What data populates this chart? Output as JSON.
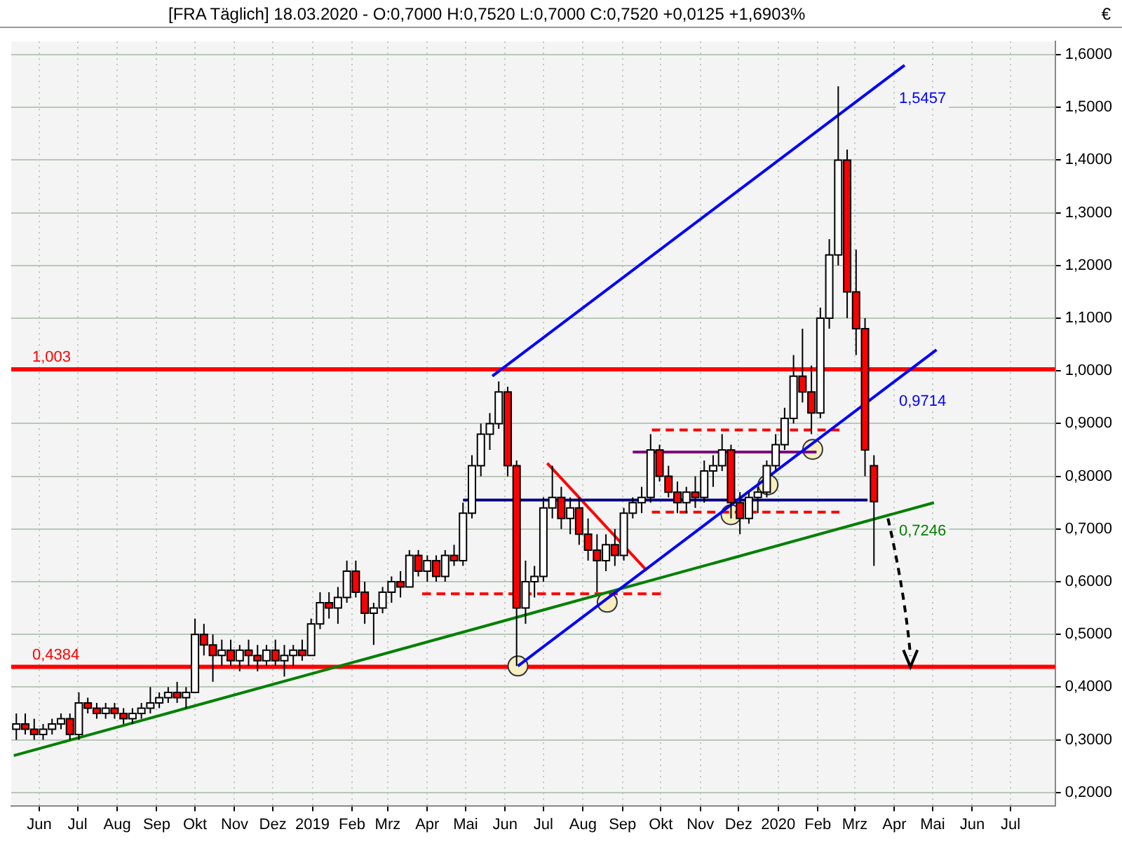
{
  "chart_data": {
    "type": "candlestick",
    "title": "[FRA Täglich] 18.03.2020 - O:0,7000 H:0,7520 L:0,7000 C:0,7520 +0,0125 +1,6903%",
    "ylabel": "€",
    "x": [
      "2018-05-14",
      "2018-05-21",
      "2018-05-28",
      "2018-06-04",
      "2018-06-11",
      "2018-06-18",
      "2018-06-25",
      "2018-07-02",
      "2018-07-09",
      "2018-07-16",
      "2018-07-23",
      "2018-07-30",
      "2018-08-06",
      "2018-08-13",
      "2018-08-20",
      "2018-08-27",
      "2018-09-03",
      "2018-09-10",
      "2018-09-17",
      "2018-09-24",
      "2018-10-01",
      "2018-10-08",
      "2018-10-15",
      "2018-10-22",
      "2018-10-29",
      "2018-11-05",
      "2018-11-12",
      "2018-11-19",
      "2018-11-26",
      "2018-12-03",
      "2018-12-10",
      "2018-12-17",
      "2018-12-24",
      "2018-12-31",
      "2019-01-07",
      "2019-01-14",
      "2019-01-21",
      "2019-01-28",
      "2019-02-04",
      "2019-02-11",
      "2019-02-18",
      "2019-02-25",
      "2019-03-04",
      "2019-03-11",
      "2019-03-18",
      "2019-03-25",
      "2019-04-01",
      "2019-04-08",
      "2019-04-15",
      "2019-04-22",
      "2019-04-29",
      "2019-05-06",
      "2019-05-13",
      "2019-05-20",
      "2019-05-27",
      "2019-06-03",
      "2019-06-10",
      "2019-06-17",
      "2019-06-24",
      "2019-07-01",
      "2019-07-08",
      "2019-07-15",
      "2019-07-22",
      "2019-07-29",
      "2019-08-05",
      "2019-08-12",
      "2019-08-19",
      "2019-08-26",
      "2019-09-02",
      "2019-09-09",
      "2019-09-16",
      "2019-09-23",
      "2019-09-30",
      "2019-10-07",
      "2019-10-14",
      "2019-10-21",
      "2019-10-28",
      "2019-11-04",
      "2019-11-11",
      "2019-11-18",
      "2019-11-25",
      "2019-12-02",
      "2019-12-09",
      "2019-12-16",
      "2019-12-23",
      "2019-12-30",
      "2020-01-06",
      "2020-01-13",
      "2020-01-20",
      "2020-01-27",
      "2020-02-03",
      "2020-02-10",
      "2020-02-17",
      "2020-02-24",
      "2020-03-02",
      "2020-03-09",
      "2020-03-16"
    ],
    "ohlc": [
      [
        0.32,
        0.35,
        0.3,
        0.33
      ],
      [
        0.33,
        0.35,
        0.31,
        0.32
      ],
      [
        0.32,
        0.34,
        0.3,
        0.31
      ],
      [
        0.31,
        0.33,
        0.3,
        0.32
      ],
      [
        0.32,
        0.34,
        0.31,
        0.33
      ],
      [
        0.33,
        0.35,
        0.32,
        0.34
      ],
      [
        0.34,
        0.35,
        0.3,
        0.31
      ],
      [
        0.31,
        0.39,
        0.3,
        0.37
      ],
      [
        0.37,
        0.38,
        0.35,
        0.36
      ],
      [
        0.36,
        0.37,
        0.34,
        0.35
      ],
      [
        0.35,
        0.37,
        0.34,
        0.36
      ],
      [
        0.36,
        0.37,
        0.34,
        0.35
      ],
      [
        0.35,
        0.36,
        0.33,
        0.34
      ],
      [
        0.34,
        0.36,
        0.33,
        0.35
      ],
      [
        0.35,
        0.37,
        0.34,
        0.36
      ],
      [
        0.36,
        0.4,
        0.35,
        0.37
      ],
      [
        0.37,
        0.39,
        0.36,
        0.38
      ],
      [
        0.38,
        0.4,
        0.37,
        0.39
      ],
      [
        0.39,
        0.41,
        0.37,
        0.38
      ],
      [
        0.38,
        0.4,
        0.36,
        0.39
      ],
      [
        0.39,
        0.53,
        0.39,
        0.5
      ],
      [
        0.5,
        0.52,
        0.46,
        0.48
      ],
      [
        0.48,
        0.5,
        0.41,
        0.46
      ],
      [
        0.46,
        0.49,
        0.44,
        0.47
      ],
      [
        0.47,
        0.49,
        0.44,
        0.45
      ],
      [
        0.45,
        0.48,
        0.43,
        0.47
      ],
      [
        0.47,
        0.49,
        0.44,
        0.46
      ],
      [
        0.46,
        0.48,
        0.43,
        0.45
      ],
      [
        0.45,
        0.48,
        0.44,
        0.47
      ],
      [
        0.47,
        0.49,
        0.44,
        0.45
      ],
      [
        0.45,
        0.48,
        0.42,
        0.46
      ],
      [
        0.46,
        0.48,
        0.44,
        0.47
      ],
      [
        0.47,
        0.49,
        0.45,
        0.46
      ],
      [
        0.46,
        0.53,
        0.46,
        0.52
      ],
      [
        0.52,
        0.58,
        0.51,
        0.56
      ],
      [
        0.56,
        0.58,
        0.53,
        0.55
      ],
      [
        0.55,
        0.59,
        0.52,
        0.57
      ],
      [
        0.57,
        0.64,
        0.56,
        0.62
      ],
      [
        0.62,
        0.64,
        0.57,
        0.58
      ],
      [
        0.58,
        0.6,
        0.52,
        0.54
      ],
      [
        0.54,
        0.56,
        0.48,
        0.55
      ],
      [
        0.55,
        0.59,
        0.54,
        0.58
      ],
      [
        0.58,
        0.61,
        0.56,
        0.6
      ],
      [
        0.6,
        0.62,
        0.57,
        0.59
      ],
      [
        0.59,
        0.66,
        0.59,
        0.65
      ],
      [
        0.65,
        0.66,
        0.61,
        0.62
      ],
      [
        0.62,
        0.65,
        0.6,
        0.64
      ],
      [
        0.64,
        0.65,
        0.6,
        0.61
      ],
      [
        0.61,
        0.66,
        0.6,
        0.65
      ],
      [
        0.65,
        0.67,
        0.63,
        0.64
      ],
      [
        0.64,
        0.75,
        0.63,
        0.73
      ],
      [
        0.73,
        0.84,
        0.72,
        0.82
      ],
      [
        0.82,
        0.9,
        0.8,
        0.88
      ],
      [
        0.88,
        0.92,
        0.85,
        0.9
      ],
      [
        0.9,
        0.98,
        0.89,
        0.96
      ],
      [
        0.96,
        0.97,
        0.8,
        0.82
      ],
      [
        0.82,
        0.83,
        0.44,
        0.55
      ],
      [
        0.55,
        0.64,
        0.52,
        0.6
      ],
      [
        0.6,
        0.63,
        0.57,
        0.61
      ],
      [
        0.61,
        0.76,
        0.6,
        0.74
      ],
      [
        0.74,
        0.82,
        0.72,
        0.76
      ],
      [
        0.76,
        0.78,
        0.7,
        0.72
      ],
      [
        0.72,
        0.76,
        0.69,
        0.74
      ],
      [
        0.74,
        0.76,
        0.67,
        0.69
      ],
      [
        0.69,
        0.72,
        0.64,
        0.66
      ],
      [
        0.66,
        0.69,
        0.58,
        0.64
      ],
      [
        0.64,
        0.69,
        0.62,
        0.67
      ],
      [
        0.67,
        0.7,
        0.63,
        0.65
      ],
      [
        0.65,
        0.74,
        0.64,
        0.73
      ],
      [
        0.73,
        0.76,
        0.72,
        0.75
      ],
      [
        0.75,
        0.78,
        0.73,
        0.76
      ],
      [
        0.76,
        0.88,
        0.75,
        0.85
      ],
      [
        0.85,
        0.86,
        0.79,
        0.8
      ],
      [
        0.8,
        0.82,
        0.76,
        0.77
      ],
      [
        0.77,
        0.79,
        0.73,
        0.75
      ],
      [
        0.75,
        0.78,
        0.73,
        0.77
      ],
      [
        0.77,
        0.8,
        0.74,
        0.76
      ],
      [
        0.76,
        0.83,
        0.75,
        0.81
      ],
      [
        0.81,
        0.84,
        0.78,
        0.82
      ],
      [
        0.82,
        0.88,
        0.81,
        0.85
      ],
      [
        0.85,
        0.86,
        0.72,
        0.75
      ],
      [
        0.75,
        0.77,
        0.69,
        0.72
      ],
      [
        0.72,
        0.77,
        0.71,
        0.76
      ],
      [
        0.76,
        0.78,
        0.73,
        0.77
      ],
      [
        0.77,
        0.83,
        0.76,
        0.82
      ],
      [
        0.82,
        0.88,
        0.81,
        0.86
      ],
      [
        0.86,
        0.93,
        0.85,
        0.91
      ],
      [
        0.91,
        1.03,
        0.9,
        0.99
      ],
      [
        0.99,
        1.08,
        0.94,
        0.96
      ],
      [
        0.96,
        1.01,
        0.88,
        0.92
      ],
      [
        0.92,
        1.12,
        0.91,
        1.1
      ],
      [
        1.1,
        1.25,
        1.08,
        1.22
      ],
      [
        1.22,
        1.54,
        1.2,
        1.4
      ],
      [
        1.4,
        1.42,
        1.1,
        1.15
      ],
      [
        1.15,
        1.23,
        1.03,
        1.08
      ],
      [
        1.08,
        1.1,
        0.8,
        0.85
      ],
      [
        0.82,
        0.84,
        0.63,
        0.752
      ]
    ],
    "series": [
      {
        "type": "line",
        "color": "#0000ff",
        "x": [
          "2019-05-22",
          "2020-04-09"
        ],
        "values": [
          0.99,
          1.58
        ]
      },
      {
        "type": "line",
        "color": "#0000ff",
        "x": [
          "2019-06-11",
          "2020-05-04"
        ],
        "values": [
          0.44,
          1.04
        ]
      },
      {
        "type": "line",
        "color": "#008000",
        "x": [
          "2018-05-12",
          "2020-05-02"
        ],
        "values": [
          0.27,
          0.75
        ]
      },
      {
        "type": "line",
        "color": "#000080",
        "x": [
          "2019-04-29",
          "2020-03-11"
        ],
        "values": [
          0.755,
          0.755
        ]
      },
      {
        "type": "line",
        "color": "#800080",
        "x": [
          "2019-09-09",
          "2020-01-31"
        ],
        "values": [
          0.846,
          0.846
        ]
      },
      {
        "type": "line",
        "color": "#ff0000",
        "line_style": "dashed",
        "x": [
          "2019-09-24",
          "2020-02-18"
        ],
        "values": [
          0.888,
          0.888
        ]
      },
      {
        "type": "line",
        "color": "#ff0000",
        "line_style": "dashed",
        "x": [
          "2019-09-24",
          "2020-02-18"
        ],
        "values": [
          0.732,
          0.732
        ]
      },
      {
        "type": "line",
        "color": "#ff0000",
        "line_style": "dashed",
        "x": [
          "2019-03-28",
          "2019-10-01"
        ],
        "values": [
          0.577,
          0.577
        ]
      },
      {
        "type": "line",
        "color": "#ff0000",
        "x": [
          "2019-07-04",
          "2019-09-20"
        ],
        "values": [
          0.825,
          0.621
        ]
      },
      {
        "type": "scatter",
        "color": "#f7efc0",
        "marker": "circle",
        "x": [
          "2019-06-11",
          "2019-08-20",
          "2019-11-25",
          "2019-12-24",
          "2020-01-28"
        ],
        "values": [
          0.44,
          0.561,
          0.727,
          0.784,
          0.851
        ]
      }
    ],
    "ref_lines": [
      {
        "axis": "y",
        "value": 1.003,
        "label": "1,003",
        "color": "#ff0000"
      },
      {
        "axis": "y",
        "value": 0.4384,
        "label": "0,4384",
        "color": "#ff0000"
      }
    ],
    "annotations": [
      {
        "text": "1,5457",
        "x": "2020-03-18",
        "y": 1.5457
      },
      {
        "text": "0,9714",
        "x": "2020-03-18",
        "y": 0.9714
      },
      {
        "text": "0,7246",
        "x": "2020-03-18",
        "y": 0.7246
      }
    ],
    "xlim": [
      "2018-05-10",
      "2020-08-05"
    ],
    "xticks": [
      {
        "value": "2018-06-01",
        "label": "Jun"
      },
      {
        "value": "2018-07-01",
        "label": "Jul"
      },
      {
        "value": "2018-08-01",
        "label": "Aug"
      },
      {
        "value": "2018-09-01",
        "label": "Sep"
      },
      {
        "value": "2018-10-01",
        "label": "Okt"
      },
      {
        "value": "2018-11-01",
        "label": "Nov"
      },
      {
        "value": "2018-12-01",
        "label": "Dez"
      },
      {
        "value": "2019-01-01",
        "label": "2019"
      },
      {
        "value": "2019-02-01",
        "label": "Feb"
      },
      {
        "value": "2019-03-01",
        "label": "Mrz"
      },
      {
        "value": "2019-04-01",
        "label": "Apr"
      },
      {
        "value": "2019-05-01",
        "label": "Mai"
      },
      {
        "value": "2019-06-01",
        "label": "Jun"
      },
      {
        "value": "2019-07-01",
        "label": "Jul"
      },
      {
        "value": "2019-08-01",
        "label": "Aug"
      },
      {
        "value": "2019-09-01",
        "label": "Sep"
      },
      {
        "value": "2019-10-01",
        "label": "Okt"
      },
      {
        "value": "2019-11-01",
        "label": "Nov"
      },
      {
        "value": "2019-12-01",
        "label": "Dez"
      },
      {
        "value": "2020-01-01",
        "label": "2020"
      },
      {
        "value": "2020-02-01",
        "label": "Feb"
      },
      {
        "value": "2020-03-01",
        "label": "Mrz"
      },
      {
        "value": "2020-04-01",
        "label": "Apr"
      },
      {
        "value": "2020-05-01",
        "label": "Mai"
      },
      {
        "value": "2020-06-01",
        "label": "Jun"
      },
      {
        "value": "2020-07-01",
        "label": "Jul"
      }
    ],
    "ylim": [
      0.175,
      1.625
    ],
    "yticks": [
      {
        "value": 0.2,
        "label": "0,2000"
      },
      {
        "value": 0.3,
        "label": "0,3000"
      },
      {
        "value": 0.4,
        "label": "0,4000"
      },
      {
        "value": 0.5,
        "label": "0,5000"
      },
      {
        "value": 0.6,
        "label": "0,6000"
      },
      {
        "value": 0.7,
        "label": "0,7000"
      },
      {
        "value": 0.8,
        "label": "0,8000"
      },
      {
        "value": 0.9,
        "label": "0,9000"
      },
      {
        "value": 1.0,
        "label": "1,0000"
      },
      {
        "value": 1.1,
        "label": "1,1000"
      },
      {
        "value": 1.2,
        "label": "1,2000"
      },
      {
        "value": 1.3,
        "label": "1,3000"
      },
      {
        "value": 1.4,
        "label": "1,4000"
      },
      {
        "value": 1.5,
        "label": "1,5000"
      },
      {
        "value": 1.6,
        "label": "1,6000"
      }
    ],
    "grid": true,
    "legend": false
  }
}
